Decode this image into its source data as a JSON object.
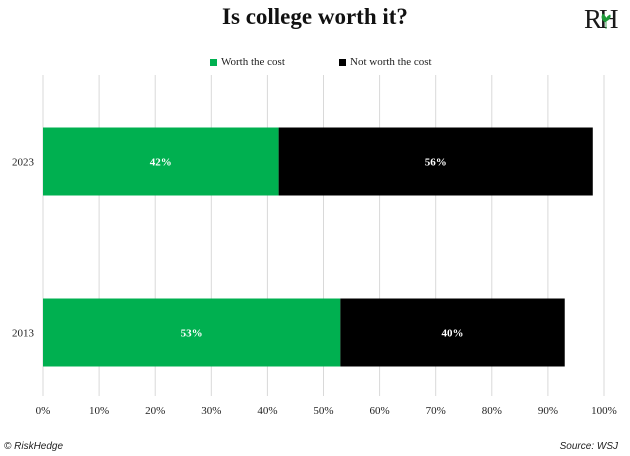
{
  "header": {
    "title": "Is college worth it?",
    "logo_text": "RH"
  },
  "footer": {
    "left": "© RiskHedge",
    "right": "Source: WSJ"
  },
  "colors": {
    "worth": "#00b050",
    "not_worth": "#000000",
    "grid": "#d9d9d9",
    "logo_leaf": "#1f9a3a"
  },
  "chart_data": {
    "type": "bar",
    "orientation": "horizontal",
    "stacked": true,
    "categories": [
      "2023",
      "2013"
    ],
    "series": [
      {
        "name": "Worth the cost",
        "values": [
          42,
          53
        ],
        "labels": [
          "42%",
          "53%"
        ]
      },
      {
        "name": "Not worth the cost",
        "values": [
          56,
          40
        ],
        "labels": [
          "56%",
          "40%"
        ]
      }
    ],
    "xlim": [
      0,
      100
    ],
    "xticks": [
      "0%",
      "10%",
      "20%",
      "30%",
      "40%",
      "50%",
      "60%",
      "70%",
      "80%",
      "90%",
      "100%"
    ],
    "grid": true,
    "legend": "top"
  }
}
